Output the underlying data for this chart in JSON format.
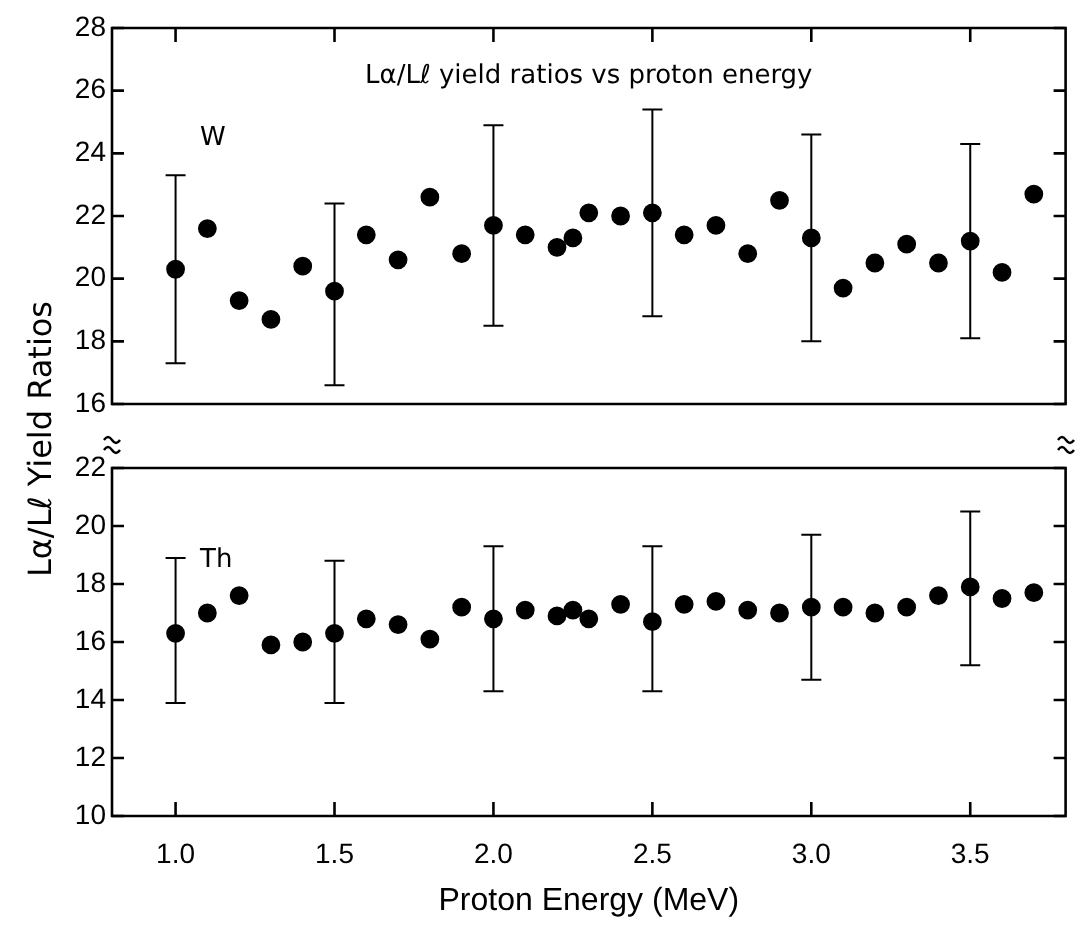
{
  "chart_data": [
    {
      "type": "scatter",
      "title": "Lα/Lℓ yield ratios vs proton energy",
      "ylabel": "Lα/Lℓ Yield Ratios",
      "x": [
        1.0,
        1.1,
        1.2,
        1.3,
        1.4,
        1.5,
        1.6,
        1.7,
        1.8,
        1.9,
        2.0,
        2.1,
        2.2,
        2.25,
        2.3,
        2.4,
        2.5,
        2.6,
        2.7,
        2.8,
        2.9,
        3.0,
        3.1,
        3.2,
        3.3,
        3.4,
        3.5,
        3.6,
        3.7
      ],
      "series": [
        {
          "name": "W",
          "color": "#000000",
          "values": [
            20.3,
            21.6,
            19.3,
            18.7,
            20.4,
            19.6,
            21.4,
            20.6,
            22.6,
            20.8,
            21.7,
            21.4,
            21.0,
            21.3,
            22.1,
            22.0,
            22.1,
            21.4,
            21.7,
            20.8,
            22.5,
            21.3,
            19.7,
            20.5,
            21.1,
            20.5,
            21.2,
            20.2,
            22.7
          ],
          "errors": [
            [
              17.3,
              23.3
            ],
            null,
            null,
            null,
            null,
            [
              16.6,
              22.4
            ],
            null,
            null,
            null,
            null,
            [
              18.5,
              24.9
            ],
            null,
            null,
            null,
            null,
            null,
            [
              18.8,
              25.4
            ],
            null,
            null,
            null,
            null,
            [
              18.0,
              24.6
            ],
            null,
            null,
            null,
            null,
            [
              18.1,
              24.3
            ],
            null,
            null
          ]
        }
      ],
      "xlim": [
        0.8,
        3.8
      ],
      "xticks": [
        {
          "value": 1,
          "label": null
        },
        {
          "value": 1.5,
          "label": null
        },
        {
          "value": 2,
          "label": null
        },
        {
          "value": 2.5,
          "label": null
        },
        {
          "value": 3,
          "label": null
        },
        {
          "value": 3.5,
          "label": null
        }
      ],
      "ylim": [
        16,
        28
      ],
      "yticks": [
        16,
        18,
        20,
        22,
        24,
        26,
        28
      ],
      "tick_labels": "y",
      "marker": "circle"
    },
    {
      "type": "scatter",
      "xlabel": "Proton Energy (MeV)",
      "x": [
        1.0,
        1.1,
        1.2,
        1.3,
        1.4,
        1.5,
        1.6,
        1.7,
        1.8,
        1.9,
        2.0,
        2.1,
        2.2,
        2.25,
        2.3,
        2.4,
        2.5,
        2.6,
        2.7,
        2.8,
        2.9,
        3.0,
        3.1,
        3.2,
        3.3,
        3.4,
        3.5,
        3.6,
        3.7
      ],
      "series": [
        {
          "name": "Th",
          "color": "#000000",
          "values": [
            16.3,
            17.0,
            17.6,
            15.9,
            16.0,
            16.3,
            16.8,
            16.6,
            16.1,
            17.2,
            16.8,
            17.1,
            16.9,
            17.1,
            16.8,
            17.3,
            16.7,
            17.3,
            17.4,
            17.1,
            17.0,
            17.2,
            17.2,
            17.0,
            17.2,
            17.6,
            17.9,
            17.5,
            17.7
          ],
          "errors": [
            [
              13.9,
              18.9
            ],
            null,
            null,
            null,
            null,
            [
              13.9,
              18.8
            ],
            null,
            null,
            null,
            null,
            [
              14.3,
              19.3
            ],
            null,
            null,
            null,
            null,
            null,
            [
              14.3,
              19.3
            ],
            null,
            null,
            null,
            null,
            [
              14.7,
              19.7
            ],
            null,
            null,
            null,
            null,
            [
              15.2,
              20.5
            ],
            null,
            null
          ]
        }
      ],
      "xlim": [
        0.8,
        3.8
      ],
      "xticks": [
        {
          "value": 1,
          "label": "1.0"
        },
        1.5,
        {
          "value": 2,
          "label": "2.0"
        },
        2.5,
        {
          "value": 3,
          "label": "3.0"
        },
        3.5
      ],
      "ylim": [
        10,
        22
      ],
      "yticks": [
        10,
        12,
        14,
        16,
        18,
        20,
        22
      ],
      "marker": "circle"
    }
  ]
}
